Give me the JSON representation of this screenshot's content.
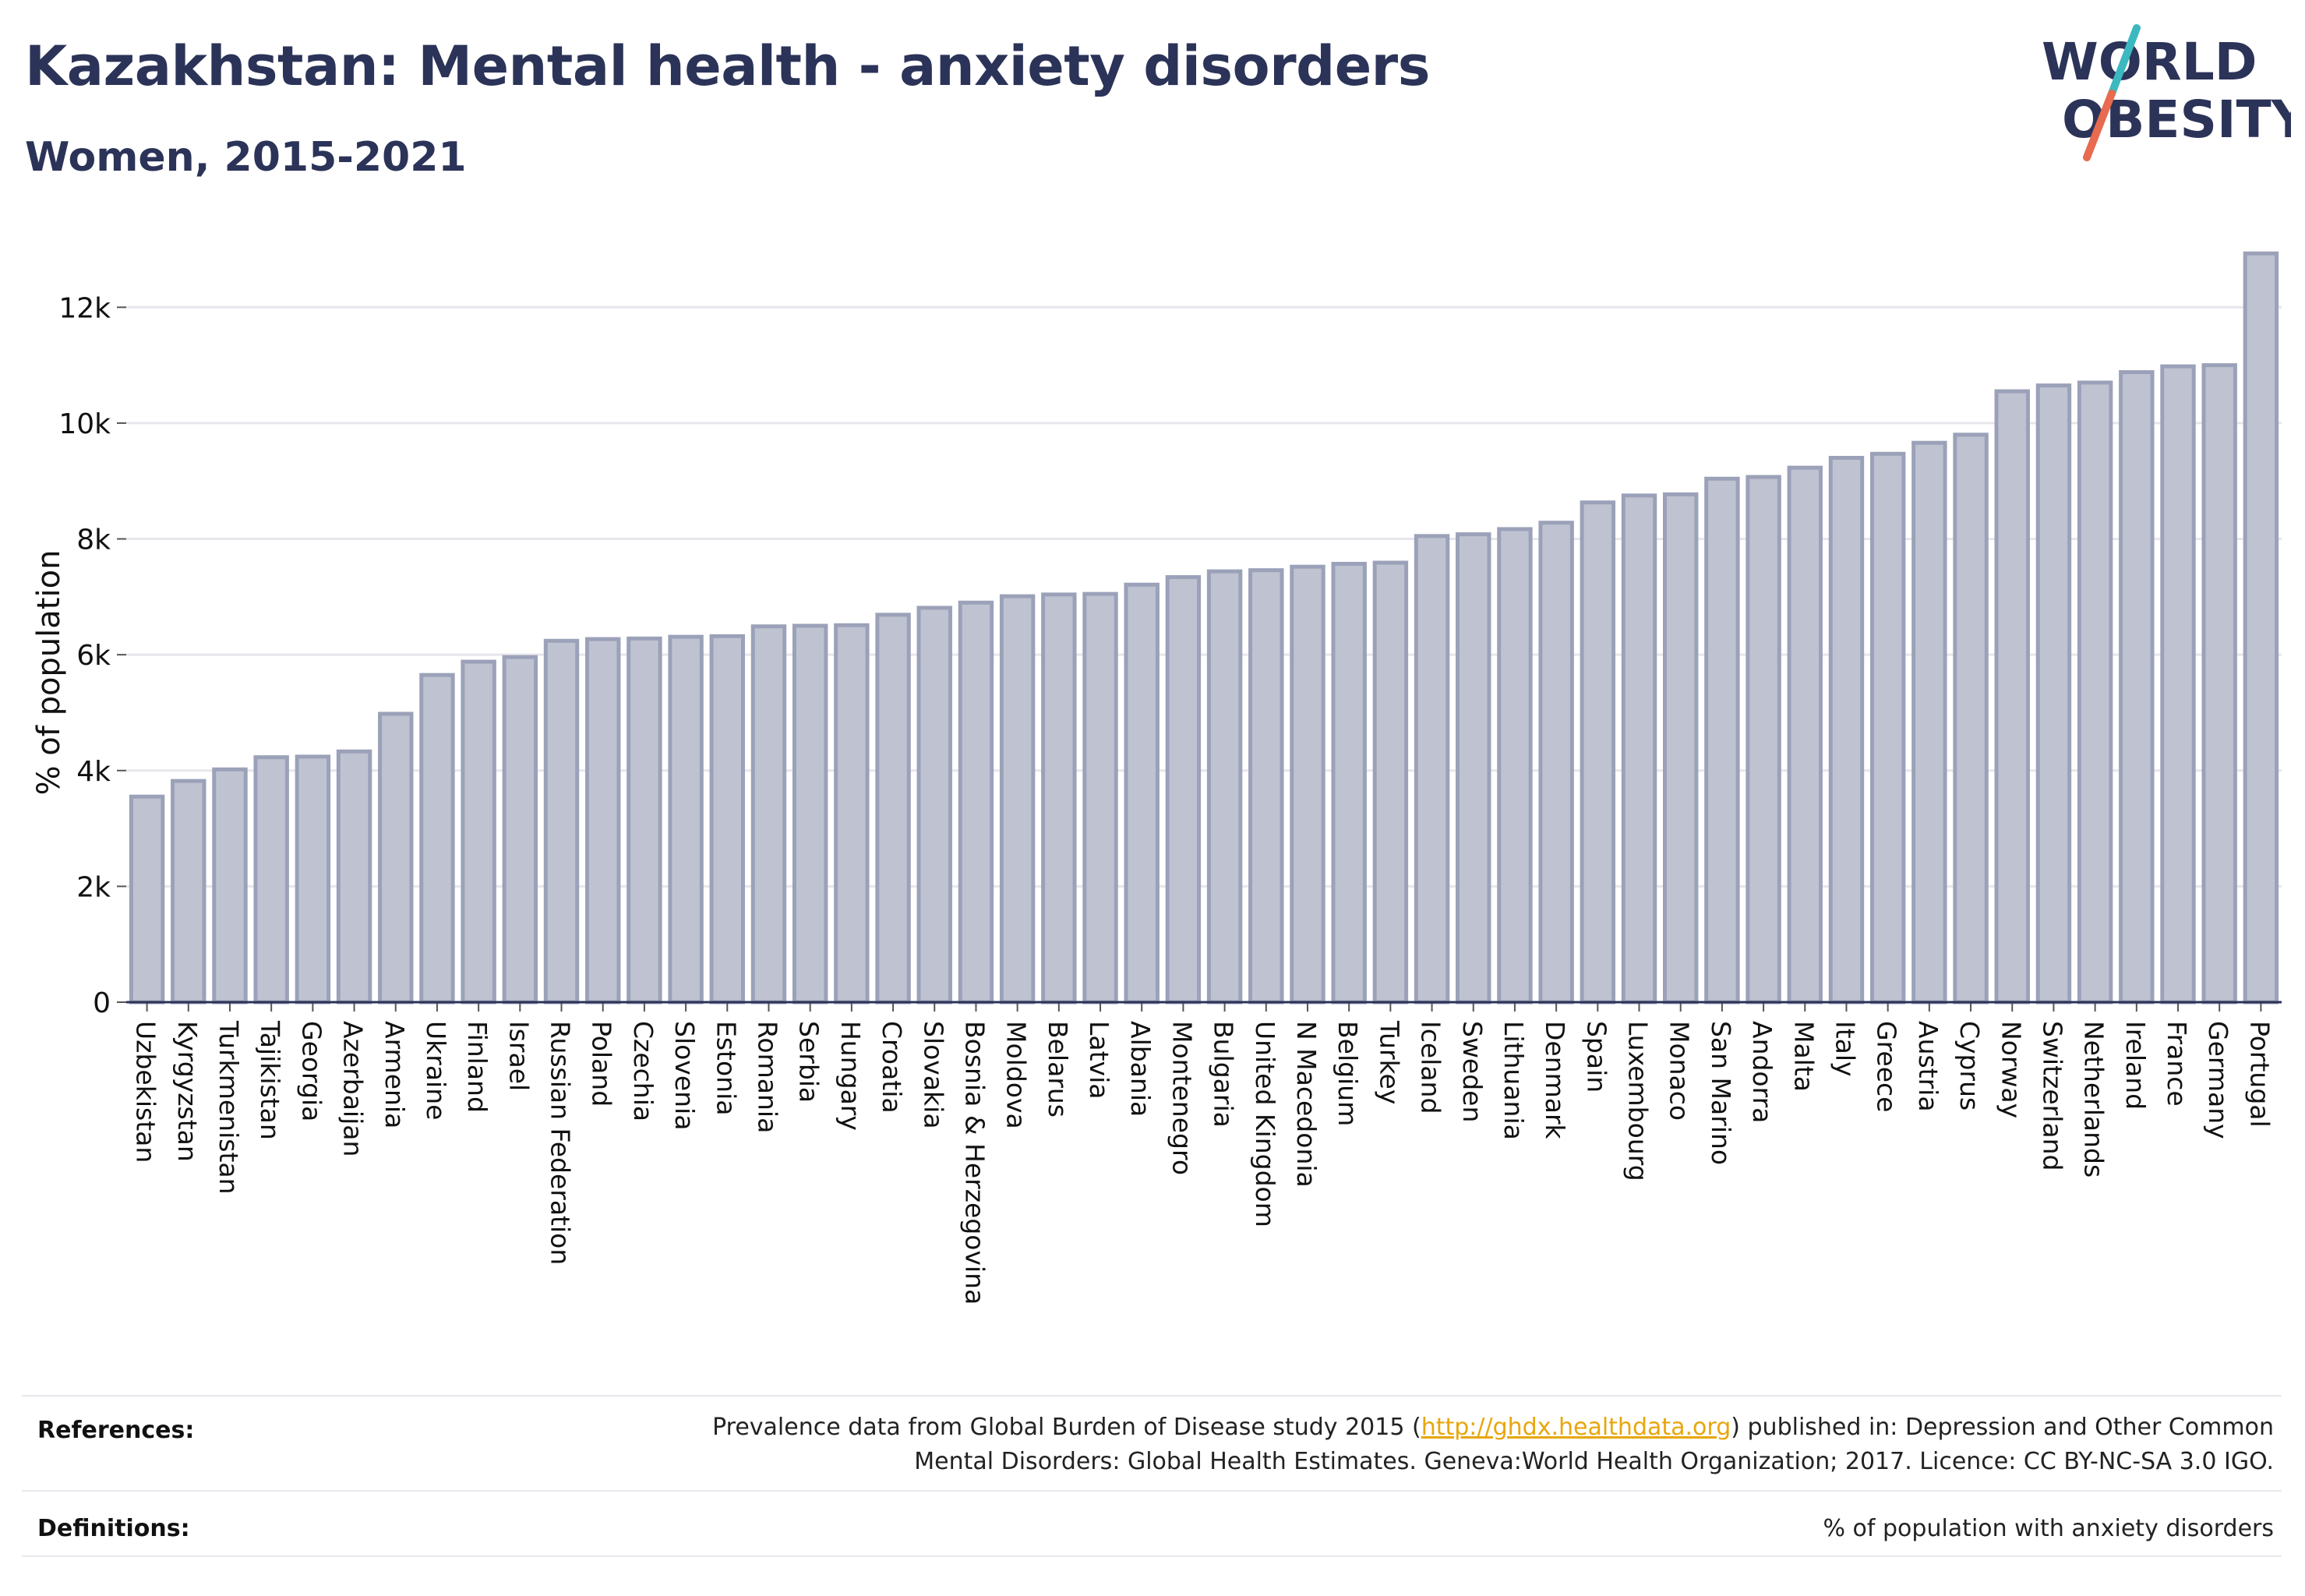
{
  "header": {
    "title": "Kazakhstan: Mental health - anxiety disorders",
    "subtitle": "Women, 2015-2021"
  },
  "logo": {
    "line1": "WORLD",
    "line2": "OBESITY",
    "text_color": "#2b3358",
    "slash_top_color": "#3cb8c0",
    "slash_bottom_color": "#e86a50"
  },
  "chart_data": {
    "type": "bar",
    "ylabel": "% of population",
    "ylim": [
      0,
      13000
    ],
    "yticks": [
      0,
      2000,
      4000,
      6000,
      8000,
      10000,
      12000
    ],
    "ytick_labels": [
      "0",
      "2k",
      "4k",
      "6k",
      "8k",
      "10k",
      "12k"
    ],
    "grid": true,
    "bar_fill": "#bfc3d1",
    "bar_stroke": "#9ba1b8",
    "categories": [
      "Uzbekistan",
      "Kyrgyzstan",
      "Turkmenistan",
      "Tajikistan",
      "Georgia",
      "Azerbaijan",
      "Armenia",
      "Ukraine",
      "Finland",
      "Israel",
      "Russian Federation",
      "Poland",
      "Czechia",
      "Slovenia",
      "Estonia",
      "Romania",
      "Serbia",
      "Hungary",
      "Croatia",
      "Slovakia",
      "Bosnia & Herzegovina",
      "Moldova",
      "Belarus",
      "Latvia",
      "Albania",
      "Montenegro",
      "Bulgaria",
      "United Kingdom",
      "N Macedonia",
      "Belgium",
      "Turkey",
      "Iceland",
      "Sweden",
      "Lithuania",
      "Denmark",
      "Spain",
      "Luxembourg",
      "Monaco",
      "San Marino",
      "Andorra",
      "Malta",
      "Italy",
      "Greece",
      "Austria",
      "Cyprus",
      "Norway",
      "Switzerland",
      "Netherlands",
      "Ireland",
      "France",
      "Germany",
      "Portugal"
    ],
    "values": [
      3550,
      3820,
      4020,
      4230,
      4240,
      4330,
      4980,
      5650,
      5880,
      5960,
      6240,
      6270,
      6280,
      6310,
      6320,
      6490,
      6500,
      6510,
      6690,
      6810,
      6900,
      7010,
      7040,
      7050,
      7210,
      7340,
      7440,
      7460,
      7520,
      7570,
      7590,
      8050,
      8080,
      8170,
      8280,
      8630,
      8750,
      8770,
      9040,
      9070,
      9230,
      9400,
      9470,
      9660,
      9800,
      10550,
      10650,
      10700,
      10880,
      10980,
      11000,
      12930
    ]
  },
  "footer": {
    "references_label": "References:",
    "references_before": "Prevalence data from Global Burden of Disease study 2015 (",
    "references_link": "http://ghdx.healthdata.org",
    "references_after": ") published in: Depression and Other Common",
    "references_line2": "Mental Disorders: Global Health Estimates. Geneva:World Health Organization; 2017. Licence: CC BY-NC-SA 3.0 IGO.",
    "definitions_label": "Definitions:",
    "definitions_text": "% of population with anxiety disorders"
  }
}
